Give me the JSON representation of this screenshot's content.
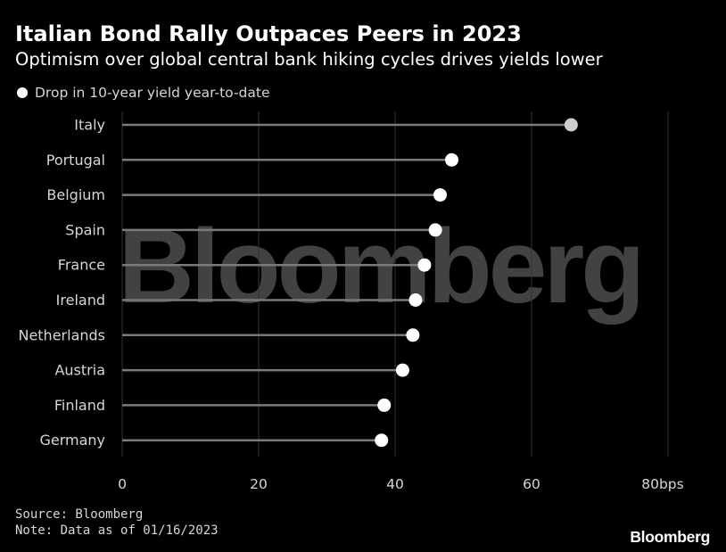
{
  "header": {
    "title": "Italian Bond Rally Outpaces Peers in 2023",
    "subtitle": "Optimism over global central bank hiking cycles drives yields lower"
  },
  "legend": {
    "label": "Drop in 10-year yield year-to-date"
  },
  "watermark": "Bloomberg",
  "footer": {
    "source": "Source: Bloomberg",
    "note": "Note: Data as of 01/16/2023",
    "brand": "Bloomberg"
  },
  "chart_data": {
    "type": "dot",
    "title": "Italian Bond Rally Outpaces Peers in 2023",
    "subtitle": "Optimism over global central bank hiking cycles drives yields lower",
    "categories": [
      "Italy",
      "Portugal",
      "Belgium",
      "Spain",
      "France",
      "Ireland",
      "Netherlands",
      "Austria",
      "Finland",
      "Germany"
    ],
    "series": [
      {
        "name": "Drop in 10-year yield year-to-date",
        "values": [
          65.8,
          48.3,
          46.6,
          45.9,
          44.3,
          43.0,
          42.6,
          41.1,
          38.4,
          38.0
        ]
      }
    ],
    "highlight_color": "#cccccc",
    "dot_color": "#ffffff",
    "xlim": [
      0,
      80
    ],
    "xticks": [
      0,
      20,
      40,
      60,
      80
    ],
    "xtick_labels": [
      "0",
      "20",
      "40",
      "60",
      "80bps"
    ],
    "xlabel": "",
    "ylabel": ""
  }
}
